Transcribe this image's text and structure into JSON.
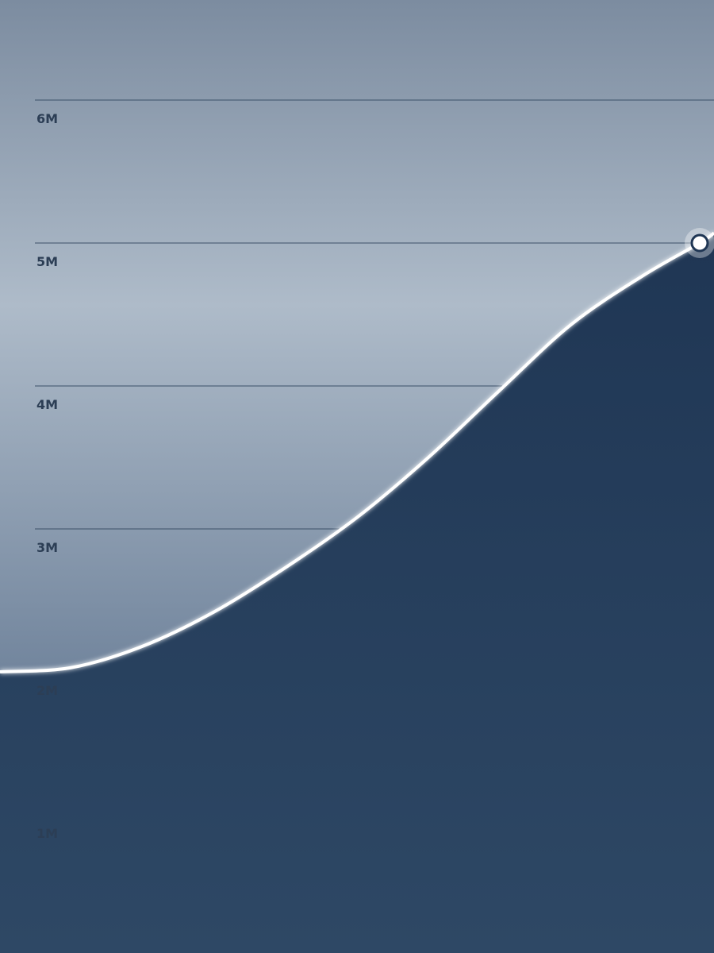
{
  "chart_data": {
    "type": "area",
    "title": "",
    "xlabel": "",
    "ylabel": "",
    "ylim": [
      0,
      6
    ],
    "y_ticks": [
      {
        "value": 6,
        "label": "6M"
      },
      {
        "value": 5,
        "label": "5M"
      },
      {
        "value": 4,
        "label": "4M"
      },
      {
        "value": 3,
        "label": "3M"
      },
      {
        "value": 2,
        "label": "2M"
      },
      {
        "value": 1,
        "label": "1M"
      }
    ],
    "grid": true,
    "series": [
      {
        "values": [
          {
            "x": 0.0,
            "y": 2.0
          },
          {
            "x": 0.1,
            "y": 2.03
          },
          {
            "x": 0.2,
            "y": 2.18
          },
          {
            "x": 0.3,
            "y": 2.42
          },
          {
            "x": 0.4,
            "y": 2.73
          },
          {
            "x": 0.5,
            "y": 3.08
          },
          {
            "x": 0.6,
            "y": 3.5
          },
          {
            "x": 0.7,
            "y": 3.97
          },
          {
            "x": 0.8,
            "y": 4.43
          },
          {
            "x": 0.9,
            "y": 4.77
          },
          {
            "x": 0.98,
            "y": 5.0
          },
          {
            "x": 1.0,
            "y": 5.07
          }
        ],
        "highlight_x": 0.98
      }
    ],
    "colors": {
      "area_fill": "#1f3654",
      "line": "#ffffff",
      "grid": "#3c5068",
      "tick_label": "#2c3e55",
      "bg_top": "#7c8ca0",
      "bg_mid": "#aebbc9",
      "bg_bottom": "#6b7f98"
    }
  }
}
